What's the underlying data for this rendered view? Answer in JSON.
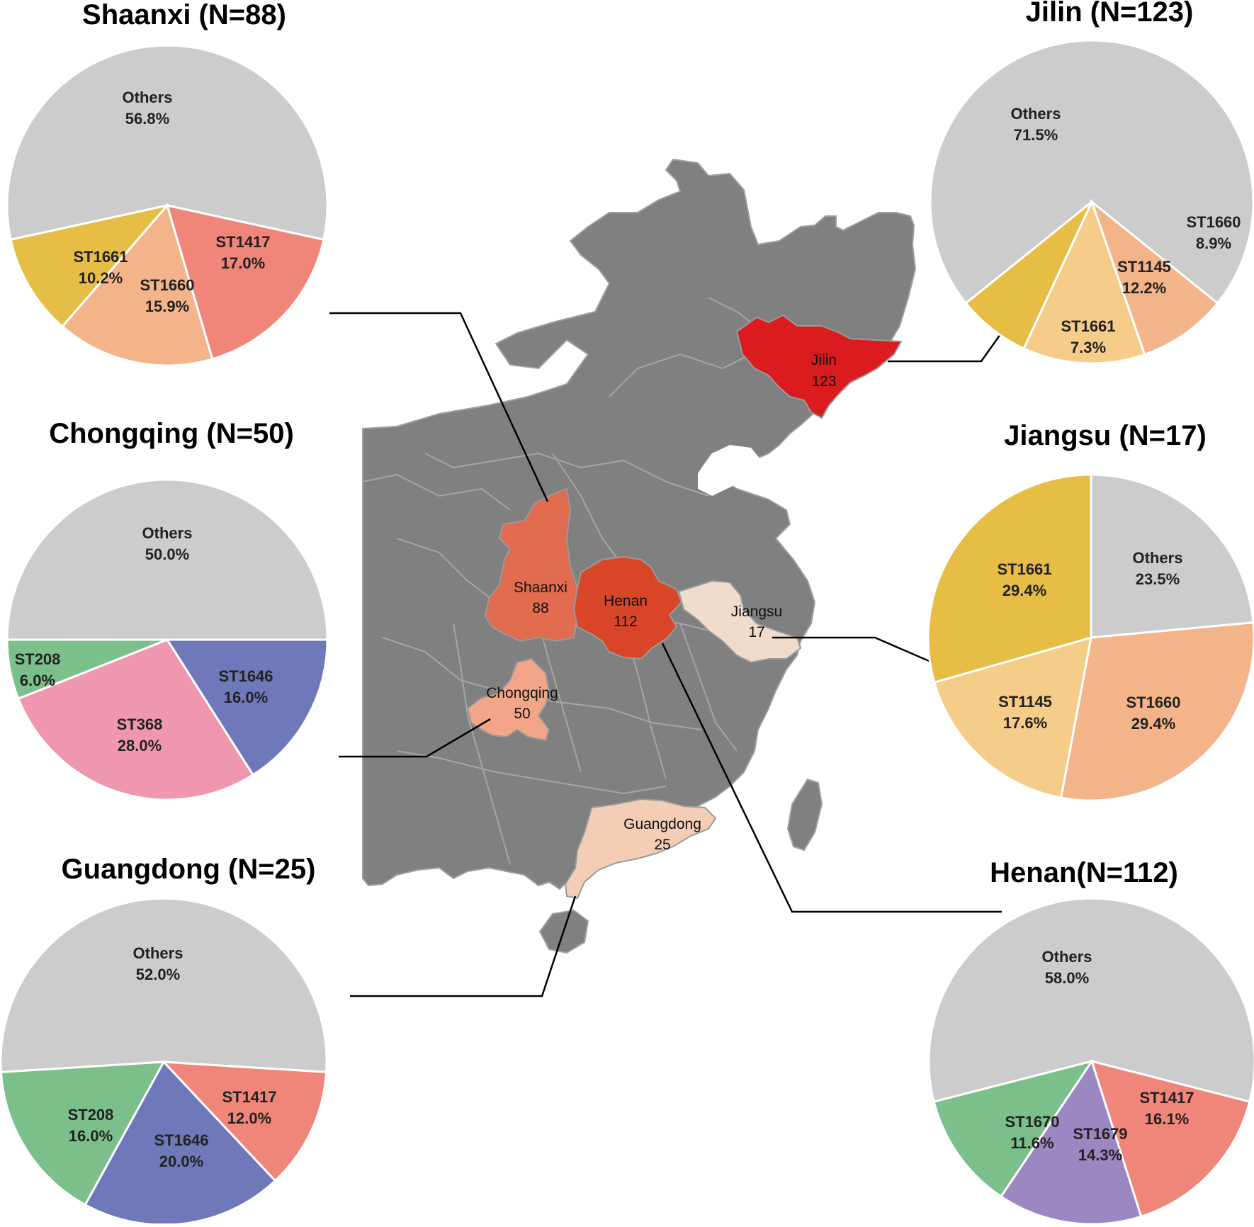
{
  "colors": {
    "others": "#cccccc",
    "ST1417": "#f0857a",
    "ST1660": "#f4b48a",
    "ST1661": "#e6bd45",
    "ST1145": "#f6cc89",
    "ST208": "#7bbf8a",
    "ST368": "#f097b0",
    "ST1646": "#6f78b9",
    "ST1670": "#7bbf8a",
    "ST1679": "#9b87c2",
    "map_base": "#808080",
    "map_border": "#9a9a9a"
  },
  "map": {
    "provinces": [
      {
        "name": "Jilin",
        "value": "123",
        "color": "#da1c1e"
      },
      {
        "name": "Shaanxi",
        "value": "88",
        "color": "#e16c4f"
      },
      {
        "name": "Henan",
        "value": "112",
        "color": "#d94527"
      },
      {
        "name": "Jiangsu",
        "value": "17",
        "color": "#f0dccc"
      },
      {
        "name": "Chongqing",
        "value": "50",
        "color": "#f2a687"
      },
      {
        "name": "Guangdong",
        "value": "25",
        "color": "#f3cdb5"
      }
    ]
  },
  "chart_data": [
    {
      "type": "pie",
      "title": "Shaanxi (N=88)",
      "province": "Shaanxi",
      "slices": [
        {
          "label": "Others",
          "value": 56.8,
          "display": "56.8%"
        },
        {
          "label": "ST1417",
          "value": 17.0,
          "display": "17.0%"
        },
        {
          "label": "ST1660",
          "value": 15.9,
          "display": "15.9%"
        },
        {
          "label": "ST1661",
          "value": 10.2,
          "display": "10.2%"
        }
      ]
    },
    {
      "type": "pie",
      "title": "Chongqing (N=50)",
      "province": "Chongqing",
      "slices": [
        {
          "label": "Others",
          "value": 50.0,
          "display": "50.0%"
        },
        {
          "label": "ST1646",
          "value": 16.0,
          "display": "16.0%"
        },
        {
          "label": "ST368",
          "value": 28.0,
          "display": "28.0%"
        },
        {
          "label": "ST208",
          "value": 6.0,
          "display": "6.0%"
        }
      ]
    },
    {
      "type": "pie",
      "title": "Guangdong (N=25)",
      "province": "Guangdong",
      "slices": [
        {
          "label": "Others",
          "value": 52.0,
          "display": "52.0%"
        },
        {
          "label": "ST1417",
          "value": 12.0,
          "display": "12.0%"
        },
        {
          "label": "ST1646",
          "value": 20.0,
          "display": "20.0%"
        },
        {
          "label": "ST208",
          "value": 16.0,
          "display": "16.0%"
        }
      ]
    },
    {
      "type": "pie",
      "title": "Jilin (N=123)",
      "province": "Jilin",
      "slices": [
        {
          "label": "Others",
          "value": 71.5,
          "display": "71.5%"
        },
        {
          "label": "ST1660",
          "value": 8.9,
          "display": "8.9%"
        },
        {
          "label": "ST1145",
          "value": 12.2,
          "display": "12.2%"
        },
        {
          "label": "ST1661",
          "value": 7.3,
          "display": "7.3%"
        }
      ]
    },
    {
      "type": "pie",
      "title": "Jiangsu (N=17)",
      "province": "Jiangsu",
      "slices": [
        {
          "label": "Others",
          "value": 23.5,
          "display": "23.5%"
        },
        {
          "label": "ST1660",
          "value": 29.4,
          "display": "29.4%"
        },
        {
          "label": "ST1145",
          "value": 17.6,
          "display": "17.6%"
        },
        {
          "label": "ST1661",
          "value": 29.4,
          "display": "29.4%"
        }
      ]
    },
    {
      "type": "pie",
      "title": "Henan(N=112)",
      "province": "Henan",
      "slices": [
        {
          "label": "Others",
          "value": 58.0,
          "display": "58.0%"
        },
        {
          "label": "ST1417",
          "value": 16.1,
          "display": "16.1%"
        },
        {
          "label": "ST1679",
          "value": 14.3,
          "display": "14.3%"
        },
        {
          "label": "ST1670",
          "value": 11.6,
          "display": "11.6%"
        }
      ]
    }
  ]
}
